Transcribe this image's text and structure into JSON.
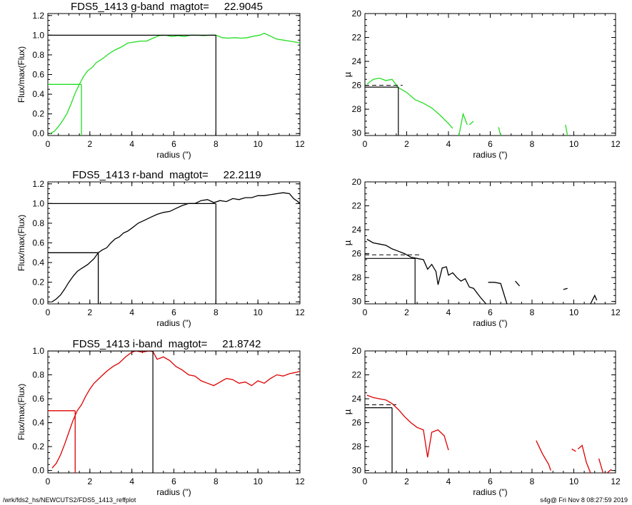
{
  "footer": {
    "left": "/wrk/fds2_hs/NEWCUTS2/FDS5_1413_reffplot",
    "right": "s4g@  Fri Nov  8 08:27:59 2019"
  },
  "chart_data": [
    {
      "type": "line",
      "title": "FDS5_1413 g-band  magtot=     22.9045",
      "xlabel": "radius (\")",
      "ylabel": "Flux/max(Flux)",
      "xlim": [
        0,
        12
      ],
      "ylim": [
        -0.02,
        1.22
      ],
      "xticks": [
        0,
        2,
        4,
        6,
        8,
        10,
        12
      ],
      "yticks": [
        0.0,
        0.2,
        0.4,
        0.6,
        0.8,
        1.0,
        1.2
      ],
      "color": "#22dd22",
      "curve": {
        "x": [
          0.1,
          0.3,
          0.5,
          0.7,
          0.9,
          1.1,
          1.3,
          1.5,
          1.7,
          1.9,
          2.1,
          2.3,
          2.6,
          2.9,
          3.2,
          3.5,
          3.8,
          4.1,
          4.4,
          4.7,
          5.0,
          5.3,
          5.6,
          5.9,
          6.2,
          6.5,
          6.8,
          7.1,
          7.4,
          7.7,
          8.0,
          8.3,
          8.6,
          8.9,
          9.2,
          9.5,
          9.8,
          10.1,
          10.3,
          10.6,
          10.9,
          11.2,
          11.5,
          11.8,
          12.0
        ],
        "y": [
          0.0,
          0.02,
          0.07,
          0.13,
          0.2,
          0.3,
          0.41,
          0.5,
          0.58,
          0.64,
          0.67,
          0.72,
          0.76,
          0.81,
          0.85,
          0.88,
          0.92,
          0.93,
          0.94,
          0.94,
          0.97,
          0.995,
          1.0,
          0.985,
          0.995,
          0.985,
          1.0,
          1.0,
          0.995,
          1.0,
          1.0,
          0.975,
          0.97,
          0.975,
          0.97,
          0.975,
          0.99,
          1.0,
          1.02,
          0.99,
          0.96,
          0.95,
          0.94,
          0.93,
          0.92
        ]
      },
      "half_light": {
        "x": 1.6,
        "y": 0.5
      },
      "total": {
        "x": 8.0,
        "y": 1.0
      }
    },
    {
      "type": "line",
      "xlabel": "radius (\")",
      "ylabel": "µ",
      "xlim": [
        0,
        12
      ],
      "ylim": [
        30.2,
        20
      ],
      "xticks": [
        0,
        2,
        4,
        6,
        8,
        10,
        12
      ],
      "yticks": [
        20,
        22,
        24,
        26,
        28,
        30
      ],
      "color": "#22dd22",
      "segments": [
        {
          "x": [
            0.1,
            0.4,
            0.7,
            1.0,
            1.3,
            1.6,
            2.0,
            2.4,
            2.8,
            3.2,
            3.6,
            4.0,
            4.2
          ],
          "y": [
            25.9,
            25.5,
            25.4,
            25.6,
            25.5,
            26.2,
            26.6,
            27.2,
            27.5,
            27.9,
            28.5,
            29.2,
            29.6
          ]
        },
        {
          "x": [
            4.5,
            4.7,
            4.9
          ],
          "y": [
            30.2,
            28.4,
            29.3
          ]
        },
        {
          "x": [
            5.0,
            5.2
          ],
          "y": [
            29.3,
            29.0
          ]
        },
        {
          "x": [
            6.4,
            6.5
          ],
          "y": [
            29.5,
            30.2
          ]
        },
        {
          "x": [
            9.6,
            9.7
          ],
          "y": [
            29.3,
            30.2
          ]
        }
      ],
      "dashed_level": 26.0,
      "effective": {
        "x": 1.6,
        "y": 26.15
      }
    },
    {
      "type": "line",
      "title": "FDS5_1413 r-band  magtot=     22.2119",
      "xlabel": "radius (\")",
      "ylabel": "Flux/max(Flux)",
      "xlim": [
        0,
        12
      ],
      "ylim": [
        -0.02,
        1.22
      ],
      "xticks": [
        0,
        2,
        4,
        6,
        8,
        10,
        12
      ],
      "yticks": [
        0.0,
        0.2,
        0.4,
        0.6,
        0.8,
        1.0,
        1.2
      ],
      "color": "#000000",
      "curve": {
        "x": [
          0.2,
          0.4,
          0.6,
          0.8,
          1.0,
          1.2,
          1.4,
          1.6,
          1.9,
          2.2,
          2.4,
          2.6,
          2.8,
          3.0,
          3.2,
          3.4,
          3.6,
          3.8,
          4.0,
          4.3,
          4.6,
          4.9,
          5.2,
          5.5,
          5.8,
          6.1,
          6.4,
          6.7,
          7.0,
          7.3,
          7.6,
          7.9,
          8.2,
          8.5,
          8.8,
          9.1,
          9.4,
          9.7,
          10.0,
          10.3,
          10.6,
          10.9,
          11.2,
          11.5,
          11.7,
          11.9,
          12.0
        ],
        "y": [
          0.0,
          0.03,
          0.07,
          0.13,
          0.2,
          0.26,
          0.31,
          0.34,
          0.38,
          0.44,
          0.5,
          0.53,
          0.55,
          0.6,
          0.64,
          0.66,
          0.7,
          0.72,
          0.75,
          0.8,
          0.83,
          0.86,
          0.89,
          0.91,
          0.92,
          0.95,
          0.98,
          1.0,
          1.0,
          1.03,
          1.04,
          1.01,
          1.03,
          1.02,
          1.05,
          1.04,
          1.06,
          1.06,
          1.08,
          1.08,
          1.09,
          1.1,
          1.11,
          1.1,
          1.05,
          1.02,
          1.0
        ]
      },
      "half_light": {
        "x": 2.4,
        "y": 0.5
      },
      "total": {
        "x": 8.0,
        "y": 1.0
      }
    },
    {
      "type": "line",
      "xlabel": "radius (\")",
      "ylabel": "µ",
      "xlim": [
        0,
        12
      ],
      "ylim": [
        30.2,
        20
      ],
      "xticks": [
        0,
        2,
        4,
        6,
        8,
        10,
        12
      ],
      "yticks": [
        20,
        22,
        24,
        26,
        28,
        30
      ],
      "color": "#000000",
      "segments": [
        {
          "x": [
            0.1,
            0.4,
            0.7,
            1.0,
            1.3,
            1.6,
            1.9,
            2.2,
            2.5,
            2.8,
            3.0,
            3.2,
            3.4,
            3.5,
            3.7,
            3.9,
            4.0,
            4.2,
            4.4,
            4.6,
            4.8,
            5.0,
            5.2,
            5.5,
            5.8
          ],
          "y": [
            24.8,
            25.1,
            25.2,
            25.3,
            25.6,
            25.8,
            26.0,
            26.3,
            26.4,
            26.5,
            27.3,
            26.9,
            27.5,
            28.6,
            27.2,
            27.1,
            27.8,
            27.6,
            28.0,
            28.3,
            28.1,
            28.8,
            28.9,
            29.6,
            30.2
          ]
        },
        {
          "x": [
            5.9,
            6.2,
            6.5,
            6.8
          ],
          "y": [
            28.4,
            28.4,
            28.5,
            30.2
          ]
        },
        {
          "x": [
            7.2,
            7.4
          ],
          "y": [
            28.3,
            28.7
          ]
        },
        {
          "x": [
            9.5,
            9.7
          ],
          "y": [
            29.0,
            28.9
          ]
        },
        {
          "x": [
            10.8,
            11.0,
            11.1
          ],
          "y": [
            30.2,
            29.5,
            29.9
          ]
        }
      ],
      "dashed_level": 26.1,
      "effective": {
        "x": 2.4,
        "y": 26.4
      }
    },
    {
      "type": "line",
      "title": "FDS5_1413 i-band  magtot=     21.8742",
      "xlabel": "radius (\")",
      "ylabel": "Flux/max(Flux)",
      "xlim": [
        0,
        12
      ],
      "ylim": [
        -0.02,
        1.0
      ],
      "xticks": [
        0,
        2,
        4,
        6,
        8,
        10,
        12
      ],
      "yticks": [
        0.0,
        0.2,
        0.4,
        0.6,
        0.8,
        1.0
      ],
      "color": "#dd0000",
      "curve": {
        "x": [
          0.2,
          0.4,
          0.6,
          0.8,
          1.0,
          1.2,
          1.4,
          1.6,
          1.8,
          2.0,
          2.2,
          2.5,
          2.8,
          3.1,
          3.4,
          3.7,
          4.0,
          4.2,
          4.5,
          4.8,
          5.0,
          5.2,
          5.5,
          5.8,
          6.1,
          6.4,
          6.7,
          7.0,
          7.3,
          7.6,
          7.9,
          8.2,
          8.5,
          8.8,
          9.1,
          9.4,
          9.7,
          10.0,
          10.3,
          10.6,
          10.9,
          11.2,
          11.5,
          11.8,
          12.0
        ],
        "y": [
          0.02,
          0.06,
          0.13,
          0.22,
          0.32,
          0.42,
          0.5,
          0.55,
          0.62,
          0.68,
          0.73,
          0.78,
          0.83,
          0.87,
          0.9,
          0.95,
          0.99,
          1.0,
          0.99,
          1.0,
          0.995,
          0.93,
          0.95,
          0.92,
          0.87,
          0.84,
          0.8,
          0.79,
          0.75,
          0.73,
          0.71,
          0.74,
          0.77,
          0.76,
          0.73,
          0.74,
          0.71,
          0.75,
          0.73,
          0.77,
          0.8,
          0.79,
          0.81,
          0.82,
          0.83
        ]
      },
      "half_light": {
        "x": 1.3,
        "y": 0.5
      },
      "total": {
        "x": 5.0,
        "y": 1.0
      }
    },
    {
      "type": "line",
      "xlabel": "radius (\")",
      "ylabel": "µ",
      "xlim": [
        0,
        12
      ],
      "ylim": [
        30.2,
        20
      ],
      "xticks": [
        0,
        2,
        4,
        6,
        8,
        10,
        12
      ],
      "yticks": [
        20,
        22,
        24,
        26,
        28,
        30
      ],
      "color": "#dd0000",
      "segments": [
        {
          "x": [
            0.1,
            0.4,
            0.7,
            1.0,
            1.3,
            1.6,
            1.9,
            2.2,
            2.5,
            2.8,
            3.0,
            3.2,
            3.5,
            3.8,
            4.0
          ],
          "y": [
            23.7,
            23.9,
            24.0,
            24.1,
            24.4,
            24.9,
            25.5,
            26.0,
            26.4,
            26.6,
            28.9,
            26.8,
            26.6,
            27.1,
            28.3
          ]
        },
        {
          "x": [
            8.2,
            8.5,
            8.8,
            8.9
          ],
          "y": [
            27.5,
            28.6,
            29.5,
            30.0
          ]
        },
        {
          "x": [
            9.9,
            10.1
          ],
          "y": [
            28.2,
            28.4
          ]
        },
        {
          "x": [
            10.2,
            10.4,
            10.6,
            10.8
          ],
          "y": [
            28.2,
            27.9,
            29.3,
            30.2
          ]
        },
        {
          "x": [
            11.2,
            11.4
          ],
          "y": [
            29.0,
            30.2
          ]
        },
        {
          "x": [
            11.6,
            11.8
          ],
          "y": [
            30.2,
            29.9
          ]
        }
      ],
      "dashed_level": 24.5,
      "effective": {
        "x": 1.3,
        "y": 24.75
      }
    }
  ]
}
